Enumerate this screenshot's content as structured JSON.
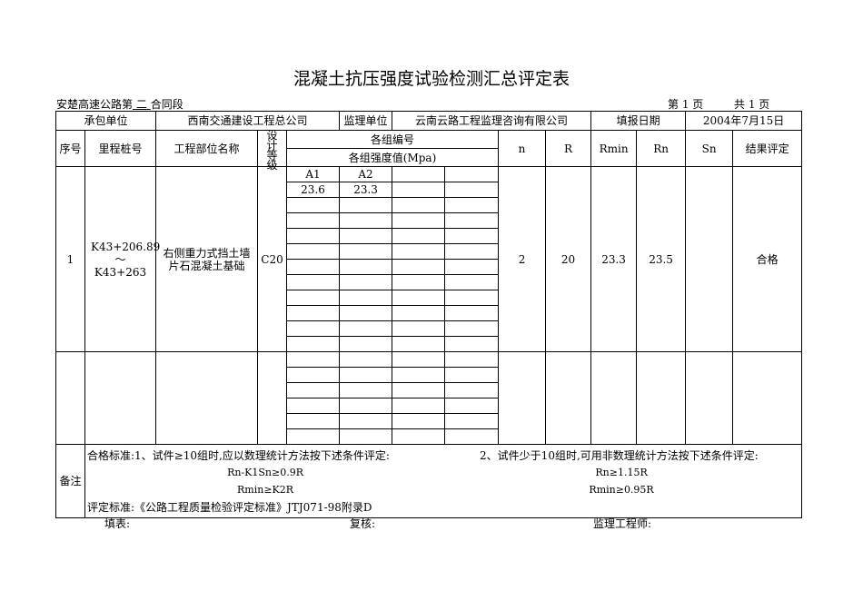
{
  "title": "混凝土抗压强度试验检测汇总评定表",
  "section": {
    "prefix": "安楚高速公路第",
    "number": "二",
    "suffix": "合同段"
  },
  "page": {
    "current_label": "第 1 页",
    "total_label": "共 1 页"
  },
  "header": {
    "contractor_label": "承包单位",
    "contractor": "西南交通建设工程总公司",
    "supervisor_label": "监理单位",
    "supervisor": "云南云路工程监理咨询有限公司",
    "date_label": "填报日期",
    "date": "2004年7月15日"
  },
  "columns": {
    "no": "序号",
    "station": "里程桩号",
    "part": "工程部位名称",
    "grade": "设计等级",
    "group_no": "各组编号",
    "strength": "各组强度值(Mpa)",
    "n": "n",
    "r": "R",
    "rmin": "Rmin",
    "rn": "Rn",
    "sn": "Sn",
    "result": "结果评定"
  },
  "rows": [
    {
      "no": "1",
      "station": "K43+206.89～K43+263",
      "part": "右侧重力式挡土墙片石混凝土基础",
      "grade": "C20",
      "groups": [
        "A1",
        "A2"
      ],
      "values": [
        "23.6",
        "23.3"
      ],
      "n": "2",
      "r": "20",
      "rmin": "23.3",
      "rn": "23.5",
      "sn": "",
      "result": "合格"
    }
  ],
  "notes": {
    "label": "备注",
    "line1a": "合格标准:1、试件≥10组时,应以数理统计方法按下述条件评定:",
    "line1b": "2、试件少于10组时,可用非数理统计方法按下述条件评定:",
    "f1a": "Rn-K1Sn≥0.9R",
    "f1b": "Rn≥1.15R",
    "f2a": "Rmin≥K2R",
    "f2b": "Rmin≥0.95R",
    "standard": "评定标准:《公路工程质量检验评定标准》JTJ071-98附录D"
  },
  "signatures": {
    "filler": "填表:",
    "reviewer": "复核:",
    "engineer": "监理工程师:"
  }
}
